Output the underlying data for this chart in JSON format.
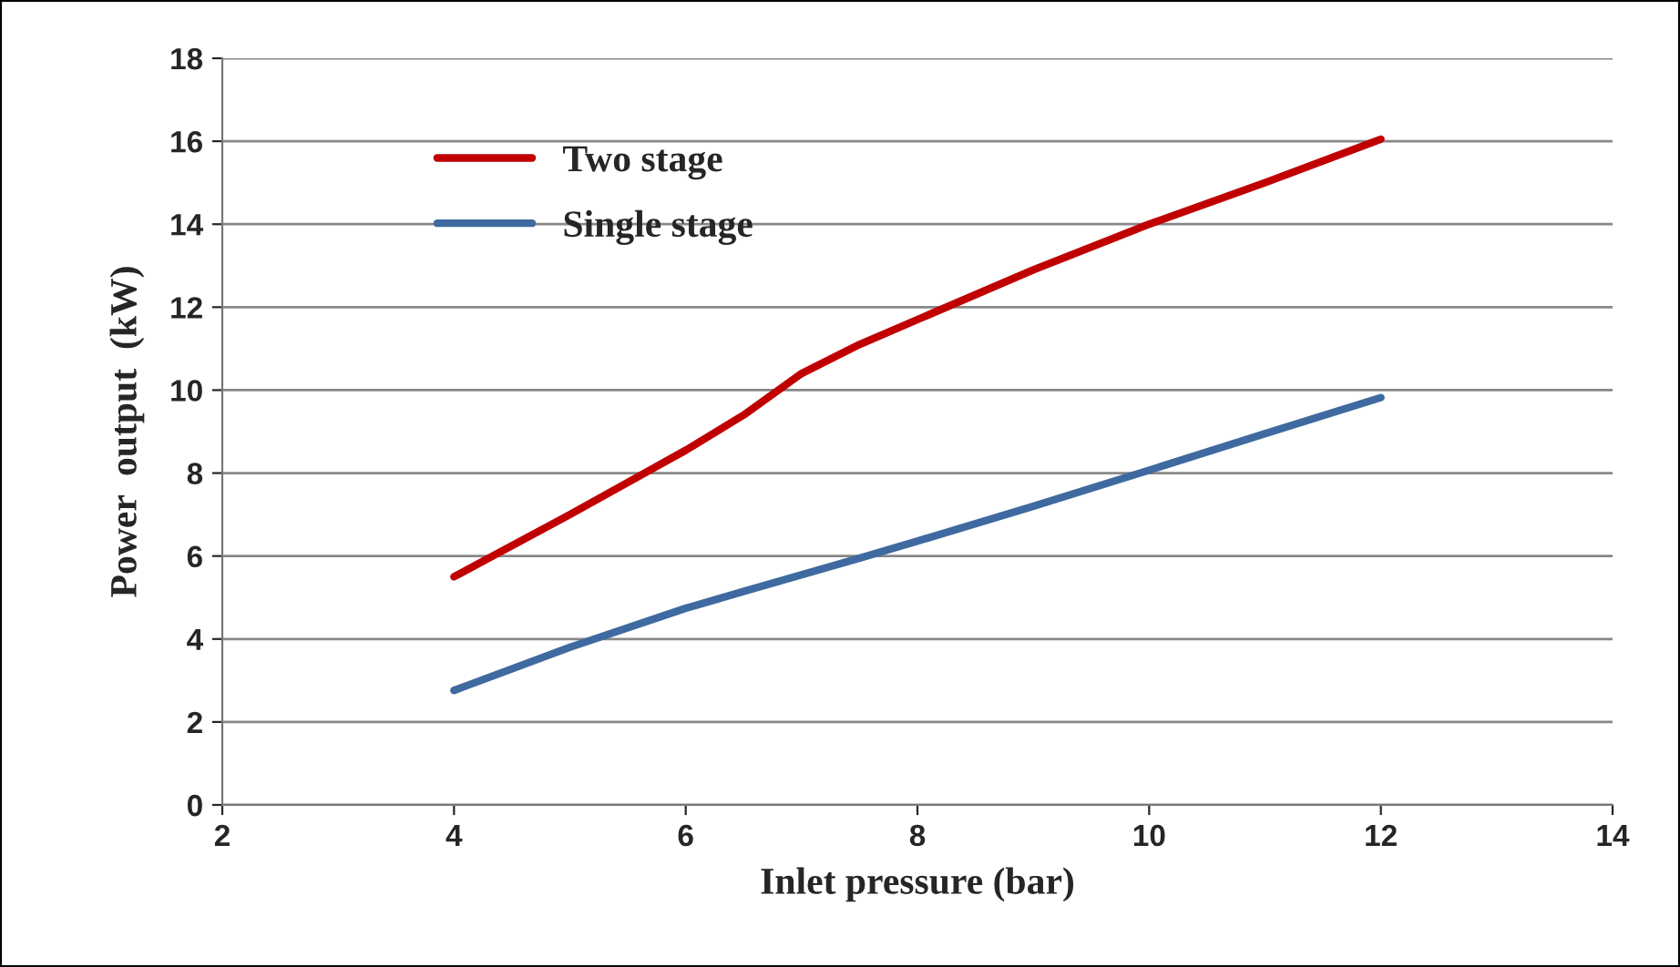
{
  "chart_data": {
    "type": "line",
    "xlabel": "Inlet pressure (bar)",
    "ylabel": "Power  output  (kW)",
    "x": [
      4,
      5,
      6,
      6.5,
      7,
      7.5,
      8,
      9,
      10,
      11,
      12
    ],
    "series": [
      {
        "name": "Two stage",
        "color": "#c00000",
        "values": [
          5.5,
          7.0,
          8.55,
          9.4,
          10.4,
          11.1,
          11.7,
          12.9,
          14.0,
          15.0,
          16.05
        ]
      },
      {
        "name": "Single stage",
        "color": "#3e6aa0",
        "values": [
          2.76,
          3.8,
          4.74,
          5.15,
          5.55,
          5.95,
          6.36,
          7.2,
          8.07,
          8.95,
          9.82
        ]
      }
    ],
    "xlim": [
      2,
      14
    ],
    "xticks": [
      2,
      4,
      6,
      8,
      10,
      12,
      14
    ],
    "ylim": [
      0,
      18
    ],
    "yticks": [
      0,
      2,
      4,
      6,
      8,
      10,
      12,
      14,
      16,
      18
    ],
    "grid": "y",
    "legend": "top left",
    "marker": "none",
    "line_style": "solid"
  }
}
